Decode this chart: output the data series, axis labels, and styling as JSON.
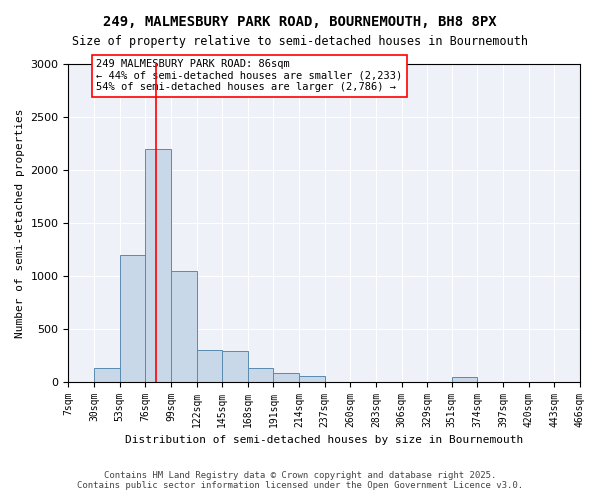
{
  "title": "249, MALMESBURY PARK ROAD, BOURNEMOUTH, BH8 8PX",
  "subtitle": "Size of property relative to semi-detached houses in Bournemouth",
  "xlabel": "Distribution of semi-detached houses by size in Bournemouth",
  "ylabel": "Number of semi-detached properties",
  "bar_color": "#c8d8e8",
  "bar_edge_color": "#5a8ab0",
  "background_color": "#eef2f8",
  "grid_color": "white",
  "property_line_color": "red",
  "property_size": 86,
  "annotation_title": "249 MALMESBURY PARK ROAD: 86sqm",
  "annotation_line1": "← 44% of semi-detached houses are smaller (2,233)",
  "annotation_line2": "54% of semi-detached houses are larger (2,786) →",
  "annotation_box_color": "white",
  "annotation_box_edge": "red",
  "bins": [
    7,
    30,
    53,
    76,
    99,
    122,
    145,
    168,
    191,
    214,
    237,
    260,
    283,
    306,
    329,
    351,
    374,
    397,
    420,
    443,
    466
  ],
  "bin_labels": [
    "7sqm",
    "30sqm",
    "53sqm",
    "76sqm",
    "99sqm",
    "122sqm",
    "145sqm",
    "168sqm",
    "191sqm",
    "214sqm",
    "237sqm",
    "260sqm",
    "283sqm",
    "306sqm",
    "329sqm",
    "351sqm",
    "374sqm",
    "397sqm",
    "420sqm",
    "443sqm",
    "466sqm"
  ],
  "counts": [
    0,
    130,
    1200,
    2200,
    1050,
    300,
    290,
    130,
    80,
    50,
    0,
    0,
    0,
    0,
    0,
    40,
    0,
    0,
    0,
    0
  ],
  "ylim": [
    0,
    3000
  ],
  "yticks": [
    0,
    500,
    1000,
    1500,
    2000,
    2500,
    3000
  ],
  "footnote1": "Contains HM Land Registry data © Crown copyright and database right 2025.",
  "footnote2": "Contains public sector information licensed under the Open Government Licence v3.0."
}
